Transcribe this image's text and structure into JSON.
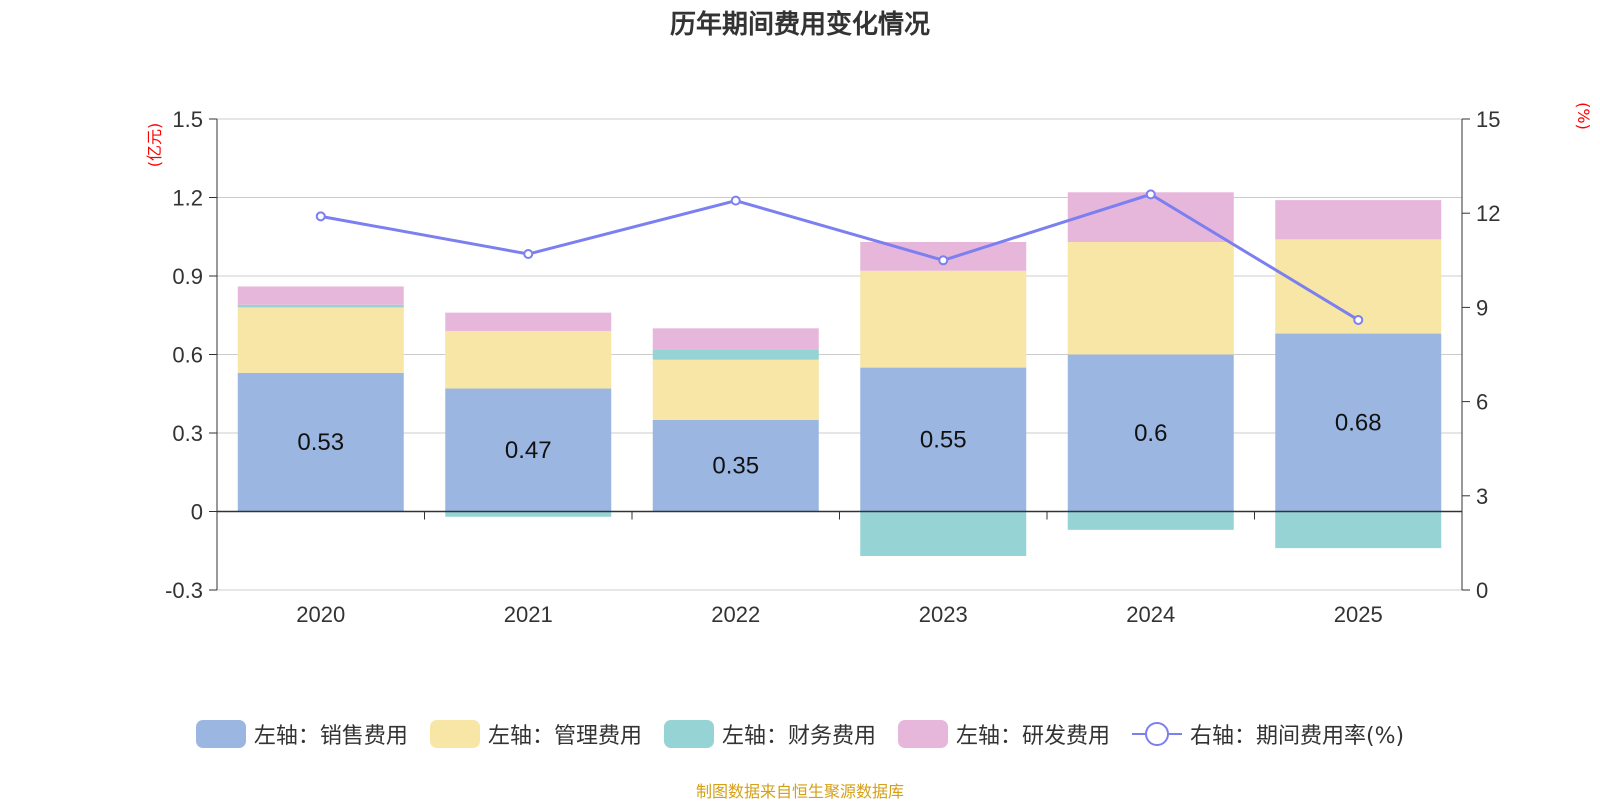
{
  "title": "历年期间费用变化情况",
  "source_note": "制图数据来自恒生聚源数据库",
  "colors": {
    "sales": "#9bb7e1",
    "admin": "#f7e6a6",
    "finance": "#96d3d4",
    "rd": "#e7b7db",
    "rate": "#7b7ff0",
    "axis_unit": "#ff0000"
  },
  "chart_data": {
    "type": "bar",
    "stacked": true,
    "title": "历年期间费用变化情况",
    "categories": [
      "2020",
      "2021",
      "2022",
      "2023",
      "2024",
      "2025"
    ],
    "left_axis": {
      "unit_label": "(亿元)",
      "ylim": [
        -0.3,
        1.5
      ],
      "ticks": [
        "-0.3",
        "0",
        "0.3",
        "0.6",
        "0.9",
        "1.2",
        "1.5"
      ]
    },
    "right_axis": {
      "unit_label": "(%)",
      "ylim": [
        0,
        15
      ],
      "ticks": [
        "0",
        "3",
        "6",
        "9",
        "12",
        "15"
      ]
    },
    "series": [
      {
        "name": "左轴：销售费用",
        "key": "sales",
        "axis": "left",
        "values": [
          0.53,
          0.47,
          0.35,
          0.55,
          0.6,
          0.68
        ],
        "data_labels": [
          "0.53",
          "0.47",
          "0.35",
          "0.55",
          "0.6",
          "0.68"
        ]
      },
      {
        "name": "左轴：管理费用",
        "key": "admin",
        "axis": "left",
        "values": [
          0.25,
          0.22,
          0.23,
          0.37,
          0.43,
          0.36
        ]
      },
      {
        "name": "左轴：财务费用",
        "key": "finance",
        "axis": "left",
        "values": [
          0.01,
          -0.02,
          0.04,
          -0.17,
          -0.07,
          -0.14
        ]
      },
      {
        "name": "左轴：研发费用",
        "key": "rd",
        "axis": "left",
        "values": [
          0.07,
          0.07,
          0.08,
          0.11,
          0.19,
          0.15
        ]
      },
      {
        "name": "右轴：期间费用率(%)",
        "key": "rate",
        "axis": "right",
        "type": "line",
        "values": [
          11.9,
          10.7,
          12.4,
          10.5,
          12.6,
          8.6
        ]
      }
    ],
    "legend_position": "bottom"
  }
}
